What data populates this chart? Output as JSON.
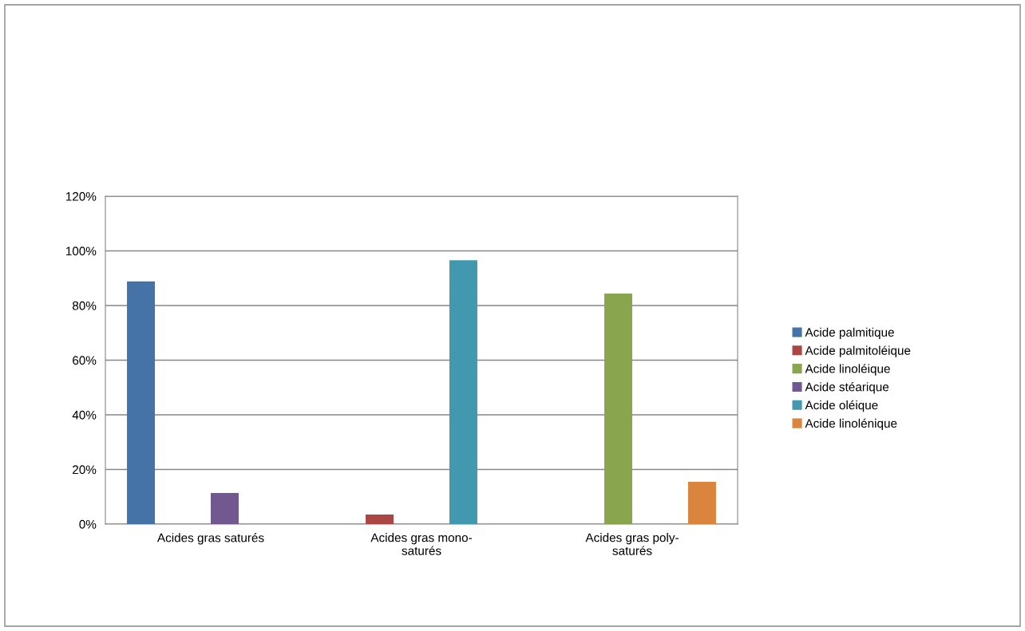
{
  "chart_data": {
    "type": "bar",
    "categories": [
      "Acides gras saturés",
      "Acides gras mono-saturés",
      "Acides gras poly-saturés"
    ],
    "series": [
      {
        "name": "Acide palmitique",
        "color": "#4572a7",
        "values": [
          88.8,
          null,
          null
        ]
      },
      {
        "name": "Acide palmitoléique",
        "color": "#aa4643",
        "values": [
          null,
          3.5,
          null
        ]
      },
      {
        "name": "Acide linoléique",
        "color": "#89a54e",
        "values": [
          null,
          null,
          84.4
        ]
      },
      {
        "name": "Acide stéarique",
        "color": "#71588f",
        "values": [
          11.4,
          null,
          null
        ]
      },
      {
        "name": "Acide oléique",
        "color": "#4198af",
        "values": [
          null,
          96.6,
          null
        ]
      },
      {
        "name": "Acide linolénique",
        "color": "#db843d",
        "values": [
          null,
          null,
          15.5
        ]
      }
    ],
    "ylim": [
      0,
      120
    ],
    "yticks": [
      {
        "value": 0,
        "label": "0%"
      },
      {
        "value": 20,
        "label": "20%"
      },
      {
        "value": 40,
        "label": "40%"
      },
      {
        "value": 60,
        "label": "60%"
      },
      {
        "value": 80,
        "label": "80%"
      },
      {
        "value": 100,
        "label": "100%"
      },
      {
        "value": 120,
        "label": "120%"
      }
    ],
    "grid": "y",
    "legend": "right"
  }
}
